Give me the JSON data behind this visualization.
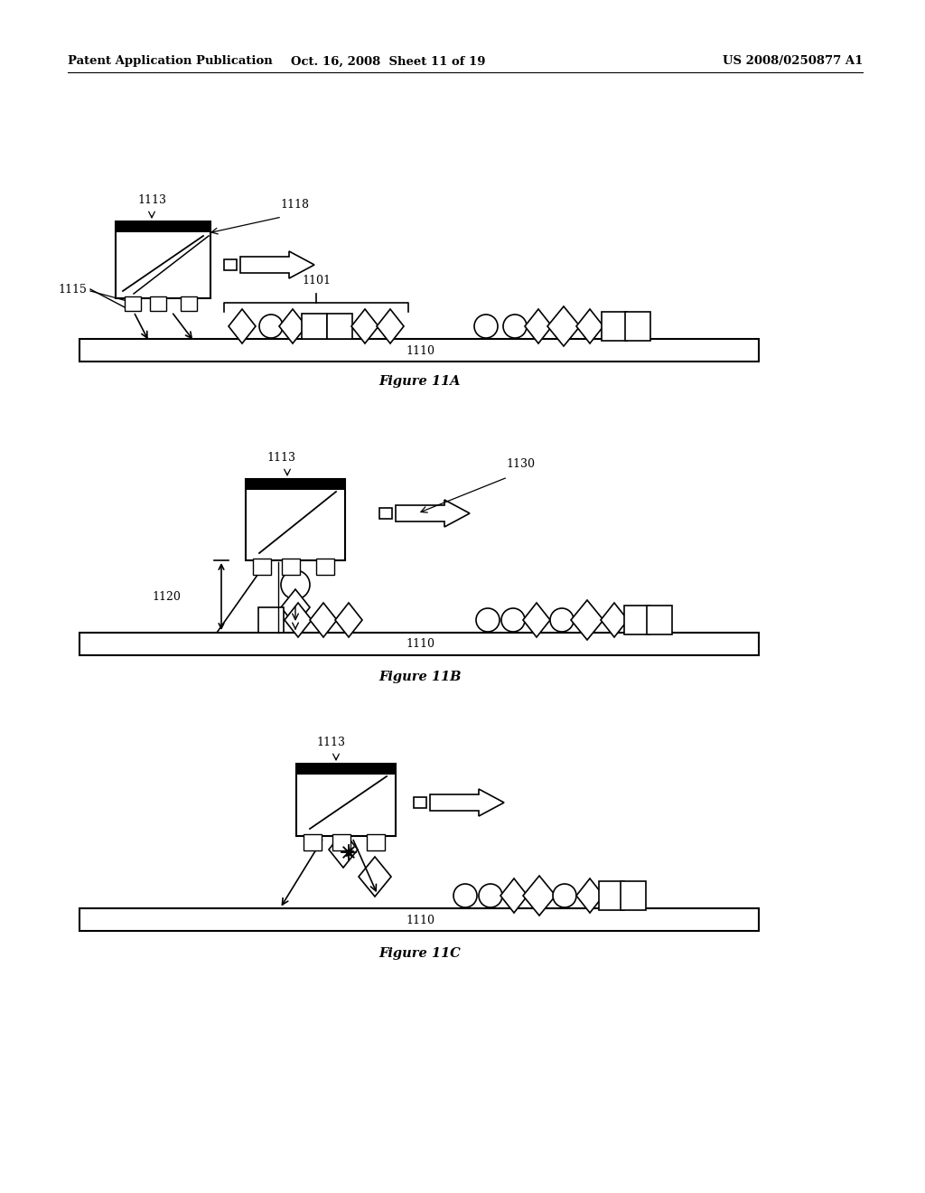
{
  "bg_color": "#ffffff",
  "header_left": "Patent Application Publication",
  "header_mid": "Oct. 16, 2008  Sheet 11 of 19",
  "header_right": "US 2008/0250877 A1",
  "fig11A_label": "Figure 11A",
  "fig11B_label": "Figure 11B",
  "fig11C_label": "Figure 11C",
  "label_1110": "1110",
  "label_1113": "1113",
  "label_1118": "1118",
  "label_1115": "1115",
  "label_1101": "1101",
  "label_1130": "1130",
  "label_1120": "1120"
}
